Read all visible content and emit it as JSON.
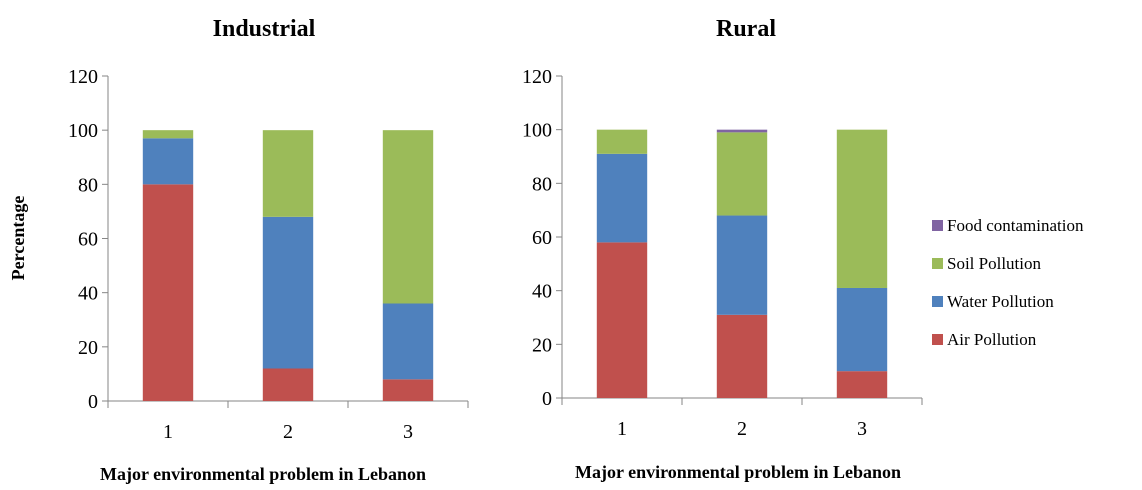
{
  "chart_data": [
    {
      "type": "bar",
      "stacked": true,
      "title": "Industrial",
      "xlabel": "Major environmental problem in Lebanon",
      "ylabel": "Percentage",
      "ylim": [
        0,
        120
      ],
      "yticks": [
        "0",
        "20",
        "40",
        "60",
        "80",
        "100",
        "120"
      ],
      "categories": [
        "1",
        "2",
        "3"
      ],
      "series": [
        {
          "name": "Air Pollution",
          "color": "#c0504d",
          "values": [
            80,
            12,
            8
          ]
        },
        {
          "name": "Water Pollution",
          "color": "#4f81bd",
          "values": [
            17,
            56,
            28
          ]
        },
        {
          "name": "Soil Pollution",
          "color": "#9bbb59",
          "values": [
            3,
            32,
            64
          ]
        },
        {
          "name": "Food contamination",
          "color": "#8064a2",
          "values": [
            0,
            0,
            0
          ]
        }
      ],
      "grid": false
    },
    {
      "type": "bar",
      "stacked": true,
      "title": "Rural",
      "xlabel": "Major environmental problem in Lebanon",
      "ylabel": "",
      "ylim": [
        0,
        120
      ],
      "yticks": [
        "0",
        "20",
        "40",
        "60",
        "80",
        "100",
        "120"
      ],
      "categories": [
        "1",
        "2",
        "3"
      ],
      "series": [
        {
          "name": "Air Pollution",
          "color": "#c0504d",
          "values": [
            58,
            31,
            10
          ]
        },
        {
          "name": "Water Pollution",
          "color": "#4f81bd",
          "values": [
            33,
            37,
            31
          ]
        },
        {
          "name": "Soil Pollution",
          "color": "#9bbb59",
          "values": [
            9,
            31,
            59
          ]
        },
        {
          "name": "Food contamination",
          "color": "#8064a2",
          "values": [
            0,
            1,
            0
          ]
        }
      ],
      "grid": false
    }
  ],
  "legend": {
    "placement": "right",
    "items": [
      {
        "label": "Food contamination",
        "color": "#8064a2"
      },
      {
        "label": "Soil Pollution",
        "color": "#9bbb59"
      },
      {
        "label": "Water Pollution",
        "color": "#4f81bd"
      },
      {
        "label": "Air Pollution",
        "color": "#c0504d"
      }
    ]
  }
}
